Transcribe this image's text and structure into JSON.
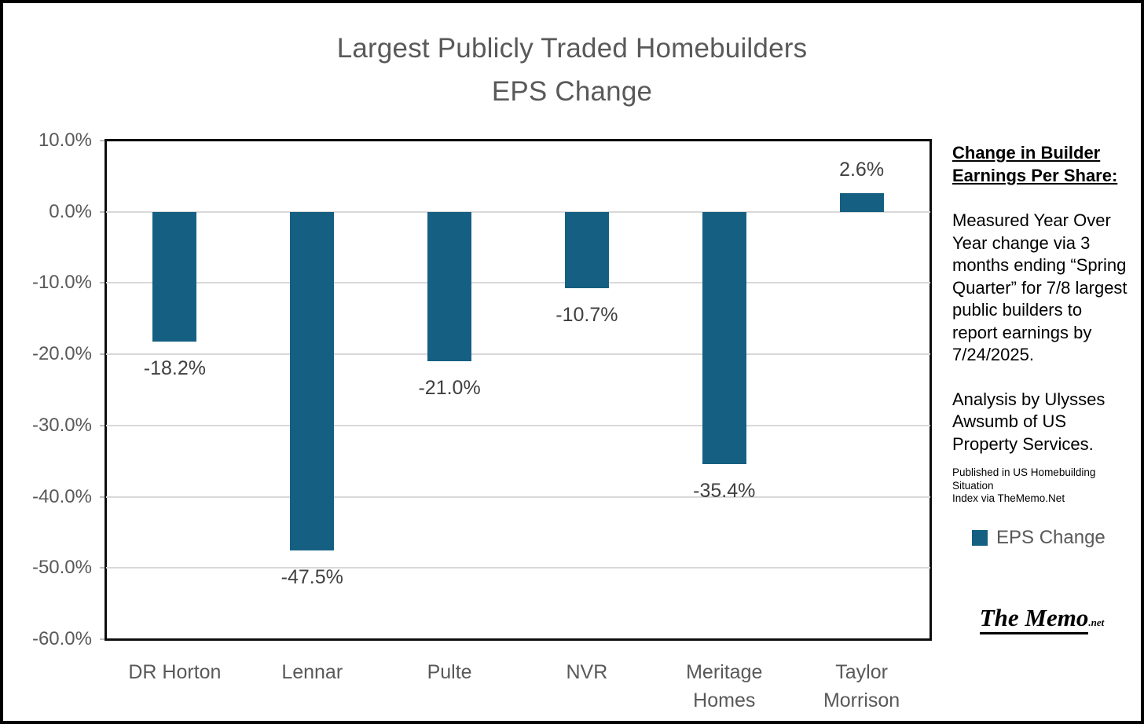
{
  "chart_data": {
    "type": "bar",
    "title_line1": "Largest Publicly Traded Homebuilders",
    "title_line2": "EPS Change",
    "categories": [
      "DR Horton",
      "Lennar",
      "Pulte",
      "NVR",
      "Meritage Homes",
      "Taylor Morrison"
    ],
    "values": [
      -18.2,
      -47.5,
      -21.0,
      -10.7,
      -35.4,
      2.6
    ],
    "value_labels": [
      "-18.2%",
      "-47.5%",
      "-21.0%",
      "-10.7%",
      "-35.4%",
      "2.6%"
    ],
    "series_name": "EPS Change",
    "y_tick_labels": [
      "10.0%",
      "0.0%",
      "-10.0%",
      "-20.0%",
      "-30.0%",
      "-40.0%",
      "-50.0%",
      "-60.0%"
    ],
    "y_tick_values": [
      10,
      0,
      -10,
      -20,
      -30,
      -40,
      -50,
      -60
    ],
    "ylim": [
      -60,
      10
    ],
    "grid": true,
    "legend_position": "right",
    "bar_color": "#156082",
    "gridline_color": "#d9d9d9"
  },
  "title": {
    "line1": "Largest Publicly Traded Homebuilders",
    "line2": "EPS Change"
  },
  "side_panel": {
    "heading": "Change in Builder Earnings Per Share:",
    "para1": "Measured Year Over Year change via 3 months ending “Spring Quarter” for 7/8 largest public builders to report earnings by 7/24/2025.",
    "para2": "Analysis by Ulysses Awsumb of US Property Services.",
    "note_line1": "Published in US Homebuilding Situation",
    "note_line2": "Index via TheMemo.Net",
    "legend_label": "EPS Change",
    "logo_main": "The Memo",
    "logo_suffix": ".net"
  }
}
